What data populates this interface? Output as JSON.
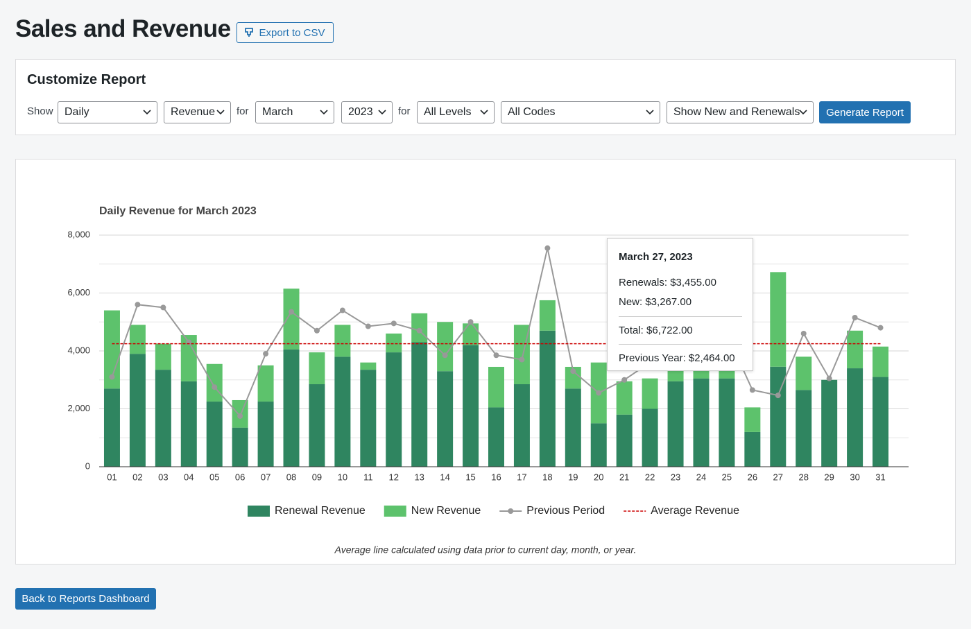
{
  "header": {
    "title": "Sales and Revenue",
    "export": "Export to CSV"
  },
  "form": {
    "title": "Customize Report",
    "show_label": "Show",
    "period": "Daily",
    "metric": "Revenue",
    "for_label": "for",
    "month": "March",
    "year": "2023",
    "for_label_2": "for",
    "level": "All Levels",
    "code": "All Codes",
    "type": "Show New and Renewals",
    "submit": "Generate Report"
  },
  "chart_data": {
    "type": "bar",
    "stacked": true,
    "title": "Daily Revenue for March 2023",
    "categories": [
      "01",
      "02",
      "03",
      "04",
      "05",
      "06",
      "07",
      "08",
      "09",
      "10",
      "11",
      "12",
      "13",
      "14",
      "15",
      "16",
      "17",
      "18",
      "19",
      "20",
      "21",
      "22",
      "23",
      "24",
      "25",
      "26",
      "27",
      "28",
      "29",
      "30",
      "31"
    ],
    "series": [
      {
        "name": "Renewal Revenue",
        "color": "#2f8560",
        "values": [
          2700,
          3900,
          3350,
          2950,
          2250,
          1350,
          2250,
          4050,
          2850,
          3800,
          3350,
          3950,
          4300,
          3300,
          4200,
          2050,
          2850,
          4700,
          2700,
          1500,
          1800,
          2000,
          2950,
          3050,
          3050,
          1200,
          3455,
          2650,
          3000,
          3400,
          3100
        ]
      },
      {
        "name": "New Revenue",
        "color": "#5dc26c",
        "values": [
          2700,
          1000,
          900,
          1600,
          1300,
          950,
          1250,
          2100,
          1100,
          1100,
          250,
          650,
          1000,
          1700,
          750,
          1400,
          2050,
          1050,
          750,
          2100,
          1150,
          1050,
          400,
          900,
          700,
          850,
          3267,
          1150,
          0,
          1300,
          1050
        ]
      },
      {
        "name": "Previous Period",
        "type": "line",
        "color": "#999999",
        "values": [
          3100,
          5600,
          5500,
          4300,
          2750,
          1750,
          3900,
          5350,
          4700,
          5400,
          4850,
          4950,
          4700,
          3850,
          5000,
          3850,
          3700,
          7550,
          3300,
          2550,
          3000,
          3600,
          4000,
          4500,
          4600,
          2650,
          2464,
          4600,
          3050,
          5150,
          4800
        ]
      }
    ],
    "average_line": {
      "name": "Average Revenue",
      "value": 4250,
      "color": "#cc0000"
    },
    "ylim": [
      0,
      8000
    ],
    "yticks": [
      0,
      {
        "value": 2000,
        "label": "2,000"
      },
      {
        "value": 4000,
        "label": "4,000"
      },
      {
        "value": 6000,
        "label": "6,000"
      },
      {
        "value": 8000,
        "label": "8,000"
      }
    ],
    "minor_yticks": [
      1000,
      3000,
      5000,
      7000
    ],
    "grid": true,
    "legend": "bottom",
    "note": "Average line calculated using data prior to current day, month, or year.",
    "tooltip": {
      "title": "March 27, 2023",
      "lines": [
        "Renewals: $3,455.00",
        "New: $3,267.00"
      ],
      "total": "Total: $6,722.00",
      "previous": "Previous Year: $2,464.00"
    }
  },
  "footer": {
    "back": "Back to Reports Dashboard"
  }
}
